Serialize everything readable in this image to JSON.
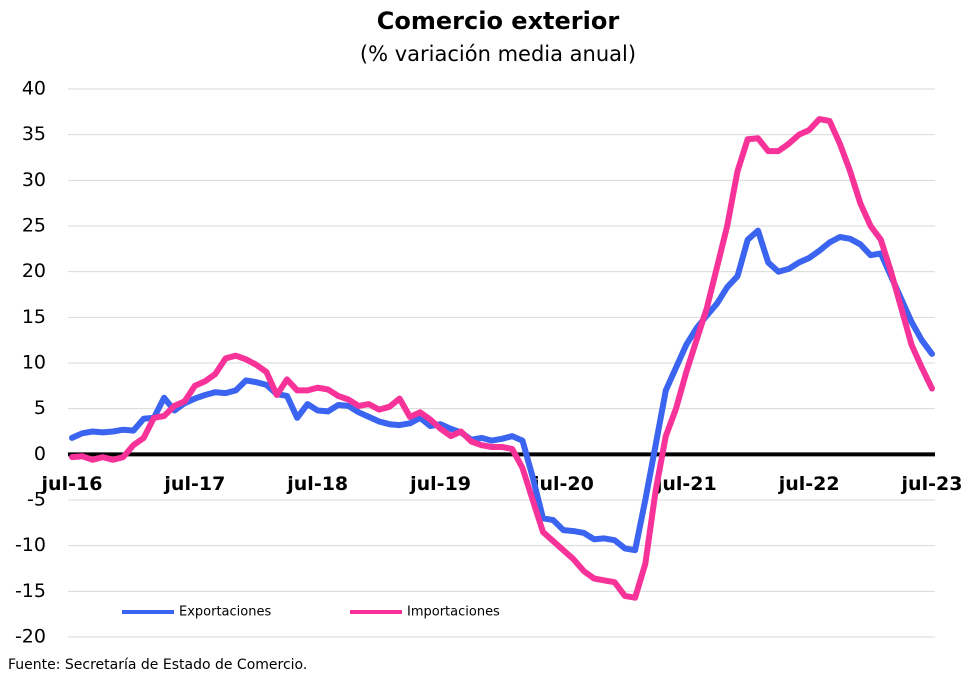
{
  "chart_data": {
    "type": "line",
    "title": "Comercio exterior",
    "subtitle": "(% variación media anual)",
    "note": "Fuente: Secretaría de Estado de Comercio.",
    "categories": [
      "jul-16",
      null,
      null,
      null,
      null,
      null,
      null,
      null,
      null,
      null,
      null,
      null,
      "jul-17",
      null,
      null,
      null,
      null,
      null,
      null,
      null,
      null,
      null,
      null,
      null,
      "jul-18",
      null,
      null,
      null,
      null,
      null,
      null,
      null,
      null,
      null,
      null,
      null,
      "jul-19",
      null,
      null,
      null,
      null,
      null,
      null,
      null,
      null,
      null,
      null,
      null,
      "jul-20",
      null,
      null,
      null,
      null,
      null,
      null,
      null,
      null,
      null,
      null,
      null,
      "jul-21",
      null,
      null,
      null,
      null,
      null,
      null,
      null,
      null,
      null,
      null,
      null,
      "jul-22",
      null,
      null,
      null,
      null,
      null,
      null,
      null,
      null,
      null,
      null,
      null,
      "jul-23"
    ],
    "series": [
      {
        "name": "Exportaciones",
        "color": "#3b64f0",
        "values": [
          1.8,
          2.3,
          2.5,
          2.4,
          2.5,
          2.7,
          2.6,
          3.9,
          4.0,
          6.2,
          4.8,
          5.6,
          6.1,
          6.5,
          6.8,
          6.7,
          7.0,
          8.1,
          7.9,
          7.6,
          6.6,
          6.4,
          4.0,
          5.5,
          4.8,
          4.7,
          5.4,
          5.3,
          4.6,
          4.1,
          3.6,
          3.3,
          3.2,
          3.4,
          4.0,
          3.1,
          3.3,
          2.8,
          2.4,
          1.6,
          1.8,
          1.5,
          1.7,
          2.0,
          1.5,
          -2.5,
          -7.0,
          -7.2,
          -8.3,
          -8.4,
          -8.6,
          -9.3,
          -9.2,
          -9.4,
          -10.3,
          -10.5,
          -5.0,
          1.0,
          7.0,
          9.5,
          12.0,
          13.8,
          15.2,
          16.5,
          18.3,
          19.5,
          23.5,
          24.5,
          21.0,
          20.0,
          20.3,
          21.0,
          21.5,
          22.3,
          23.2,
          23.8,
          23.6,
          23.0,
          21.8,
          22.0,
          19.5,
          17.0,
          14.5,
          12.5,
          11.0
        ]
      },
      {
        "name": "Importaciones",
        "color": "#f7339a",
        "values": [
          -0.3,
          -0.2,
          -0.6,
          -0.3,
          -0.6,
          -0.3,
          1.0,
          1.8,
          4.0,
          4.2,
          5.3,
          5.8,
          7.5,
          8.0,
          8.8,
          10.5,
          10.8,
          10.4,
          9.8,
          9.0,
          6.5,
          8.2,
          7.0,
          7.0,
          7.3,
          7.1,
          6.4,
          6.0,
          5.3,
          5.5,
          4.9,
          5.2,
          6.1,
          4.1,
          4.6,
          3.8,
          2.8,
          2.0,
          2.5,
          1.4,
          1.0,
          0.8,
          0.8,
          0.6,
          -1.5,
          -5.0,
          -8.5,
          -9.5,
          -10.5,
          -11.5,
          -12.8,
          -13.6,
          -13.8,
          -14.0,
          -15.5,
          -15.7,
          -12.0,
          -4.0,
          2.0,
          5.0,
          9.0,
          12.5,
          16.0,
          20.5,
          25.0,
          31.0,
          34.5,
          34.6,
          33.2,
          33.2,
          34.0,
          35.0,
          35.5,
          36.7,
          36.5,
          34.0,
          31.0,
          27.5,
          25.0,
          23.5,
          20.0,
          16.0,
          12.0,
          9.5,
          7.2
        ]
      }
    ],
    "ylim": [
      -20,
      40
    ],
    "yticks": [
      -20,
      -15,
      -10,
      -5,
      0,
      5,
      10,
      15,
      20,
      25,
      30,
      35,
      40
    ],
    "grid": true,
    "legend": "bottom-left"
  }
}
